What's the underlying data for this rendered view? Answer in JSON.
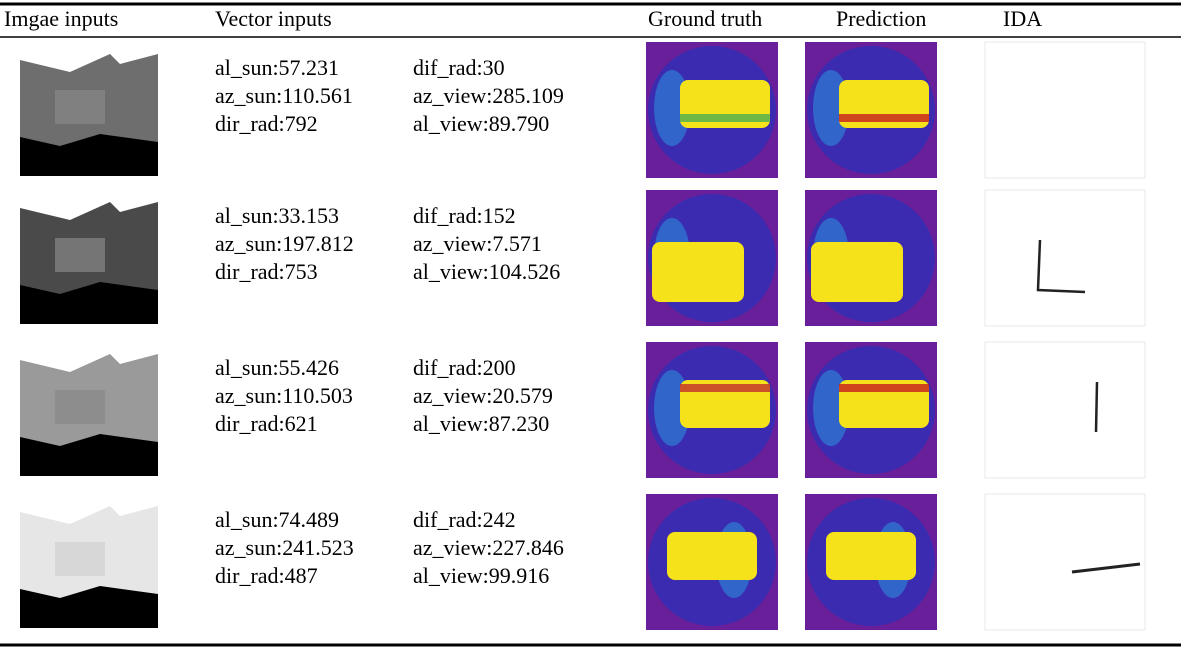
{
  "header": {
    "columns": [
      "Imgae inputs",
      "Vector inputs",
      "Ground truth",
      "Prediction",
      "IDA"
    ]
  },
  "rows": [
    {
      "vector": [
        "al_sun:57.231",
        "az_sun:110.561",
        "dir_rad:792",
        "dif_rad:30",
        "az_view:285.109",
        "al_view:89.790"
      ]
    },
    {
      "vector": [
        "al_sun:33.153",
        "az_sun:197.812",
        "dir_rad:753",
        "dif_rad:152",
        "az_view:7.571",
        "al_view:104.526"
      ]
    },
    {
      "vector": [
        "al_sun:55.426",
        "az_sun:110.503",
        "dir_rad:621",
        "dif_rad:200",
        "az_view:20.579",
        "al_view:87.230"
      ]
    },
    {
      "vector": [
        "al_sun:74.489",
        "az_sun:241.523",
        "dir_rad:487",
        "dif_rad:242",
        "az_view:227.846",
        "al_view:99.916"
      ]
    }
  ]
}
